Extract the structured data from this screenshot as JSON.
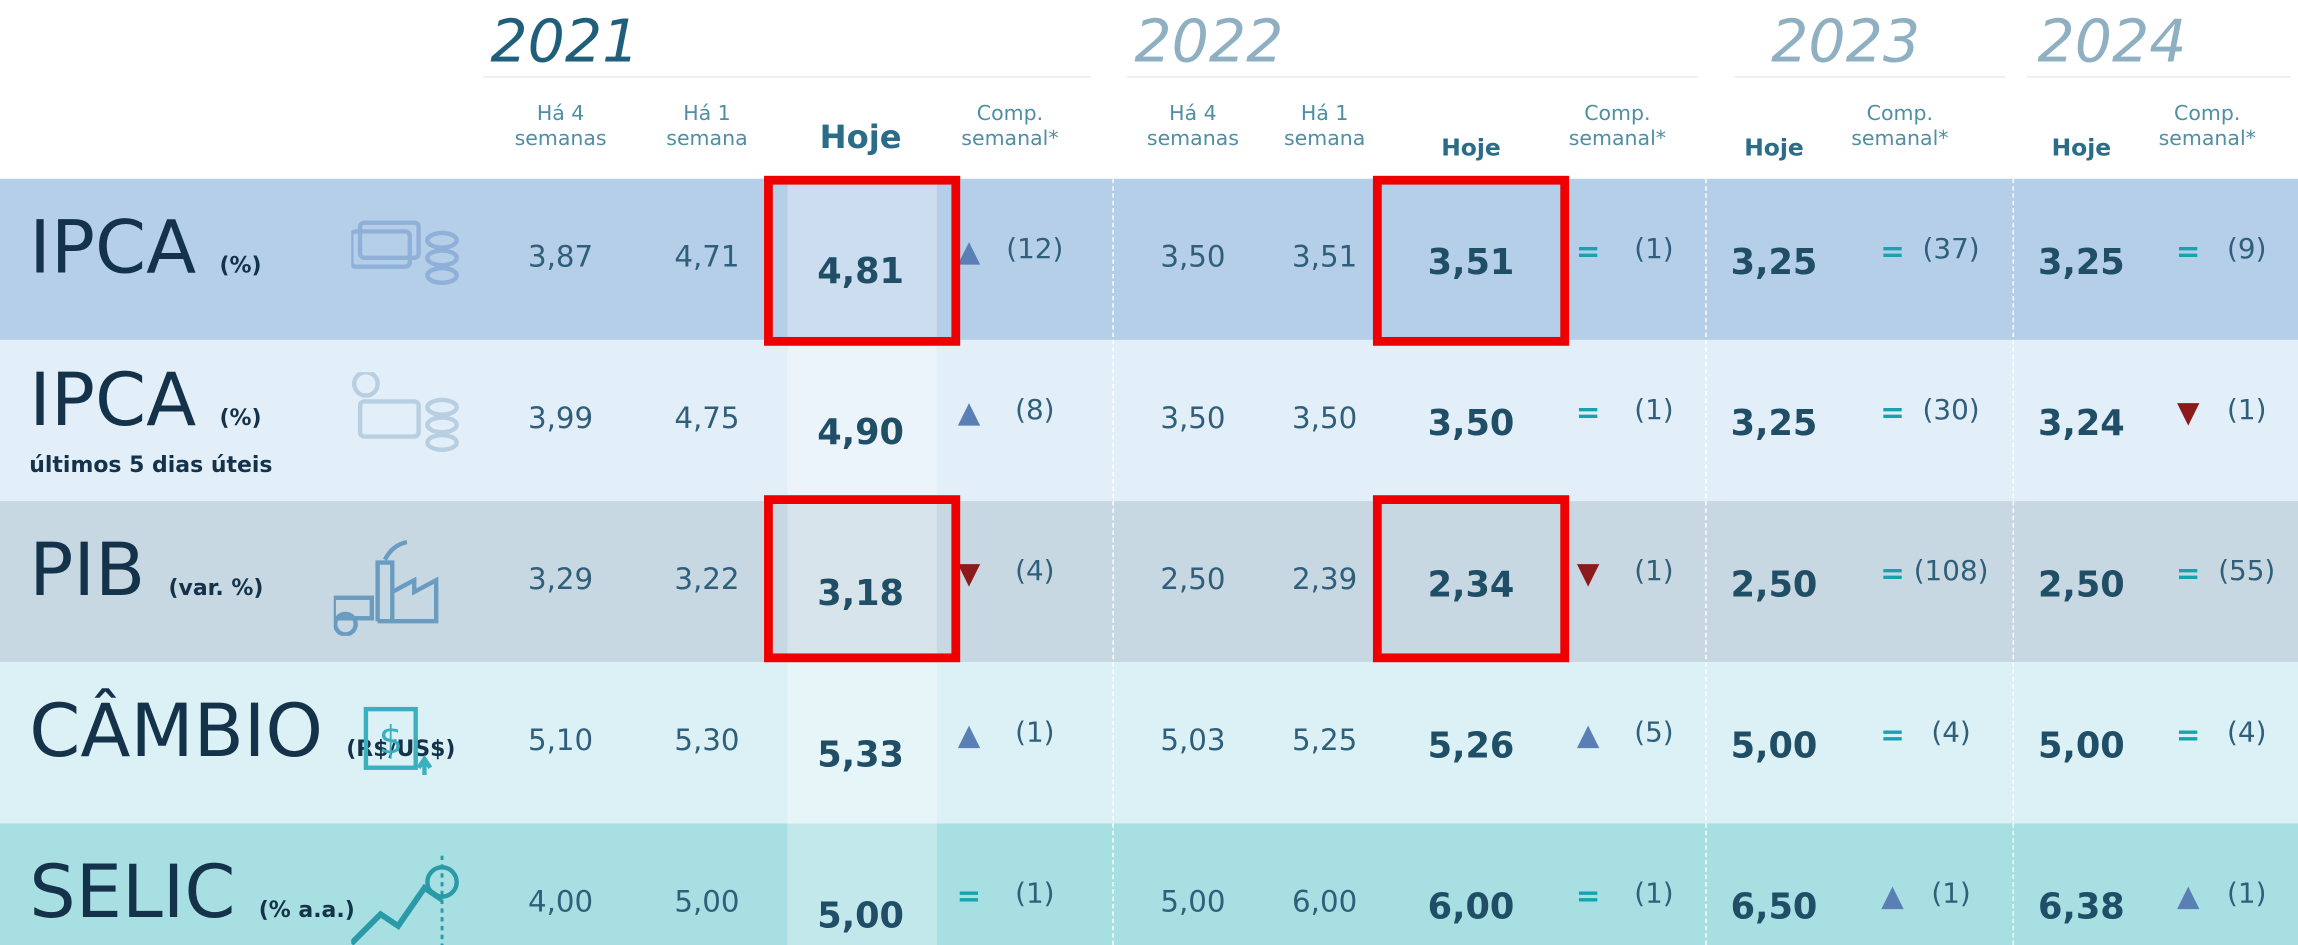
{
  "header": {
    "periods": [
      {
        "year": "2021",
        "columns": [
          "Há 4 semanas",
          "Há 1 semana",
          "Hoje",
          "Comp. semanal*"
        ]
      },
      {
        "year": "2022",
        "columns": [
          "Há 4 semanas",
          "Há 1 semana",
          "Hoje",
          "Comp. semanal*"
        ]
      },
      {
        "year": "2023",
        "columns": [
          "Hoje",
          "Comp. semanal*"
        ]
      },
      {
        "year": "2024",
        "columns": [
          "Hoje",
          "Comp. semanal*"
        ]
      }
    ]
  },
  "rows": [
    {
      "name": "IPCA",
      "unit": "(%)",
      "background": "#b5cfe9",
      "periods": [
        {
          "values": [
            "3,87",
            "4,71",
            "4,81"
          ],
          "trend": "▲",
          "trend_color": "#5a7fb5",
          "count": "(12)"
        },
        {
          "values": [
            "3,50",
            "3,51",
            "3,51"
          ],
          "trend": "=",
          "trend_color": "#17a2b0",
          "count": "(1)"
        },
        {
          "values": [
            "3,25"
          ],
          "trend": "=",
          "trend_color": "#17a2b0",
          "count": "(37)"
        },
        {
          "values": [
            "3,25"
          ],
          "trend": "=",
          "trend_color": "#17a2b0",
          "count": "(9)"
        }
      ]
    },
    {
      "name": "IPCA",
      "unit": "(%)",
      "note": "últimos 5 dias úteis",
      "background": "#e3eff8",
      "periods": [
        {
          "values": [
            "3,99",
            "4,75",
            "4,90"
          ],
          "trend": "▲",
          "trend_color": "#5a7fb5",
          "count": "(8)"
        },
        {
          "values": [
            "3,50",
            "3,50",
            "3,50"
          ],
          "trend": "=",
          "trend_color": "#17a2b0",
          "count": "(1)"
        },
        {
          "values": [
            "3,25"
          ],
          "trend": "=",
          "trend_color": "#17a2b0",
          "count": "(30)"
        },
        {
          "values": [
            "3,24"
          ],
          "trend": "▼",
          "trend_color": "#8b1a1a",
          "count": "(1)"
        }
      ]
    },
    {
      "name": "PIB",
      "unit": "(var. %)",
      "background": "#c8d8e3",
      "periods": [
        {
          "values": [
            "3,29",
            "3,22",
            "3,18"
          ],
          "trend": "▼",
          "trend_color": "#8b1a1a",
          "count": "(4)"
        },
        {
          "values": [
            "2,50",
            "2,39",
            "2,34"
          ],
          "trend": "▼",
          "trend_color": "#8b1a1a",
          "count": "(1)"
        },
        {
          "values": [
            "2,50"
          ],
          "trend": "=",
          "trend_color": "#17a2b0",
          "count": "(108)"
        },
        {
          "values": [
            "2,50"
          ],
          "trend": "=",
          "trend_color": "#17a2b0",
          "count": "(55)"
        }
      ]
    },
    {
      "name": "CÂMBIO",
      "unit": "(R$/US$)",
      "background": "#dcf1f5",
      "periods": [
        {
          "values": [
            "5,10",
            "5,30",
            "5,33"
          ],
          "trend": "▲",
          "trend_color": "#5a7fb5",
          "count": "(1)"
        },
        {
          "values": [
            "5,03",
            "5,25",
            "5,26"
          ],
          "trend": "▲",
          "trend_color": "#5a7fb5",
          "count": "(5)"
        },
        {
          "values": [
            "5,00"
          ],
          "trend": "=",
          "trend_color": "#17a2b0",
          "count": "(4)"
        },
        {
          "values": [
            "5,00"
          ],
          "trend": "=",
          "trend_color": "#17a2b0",
          "count": "(4)"
        }
      ]
    },
    {
      "name": "SELIC",
      "unit": "(% a.a.)",
      "background": "#a8dfe2",
      "periods": [
        {
          "values": [
            "4,00",
            "5,00",
            "5,00"
          ],
          "trend": "=",
          "trend_color": "#17a2b0",
          "count": "(1)"
        },
        {
          "values": [
            "5,00",
            "6,00",
            "6,00"
          ],
          "trend": "=",
          "trend_color": "#17a2b0",
          "count": "(1)"
        },
        {
          "values": [
            "6,50"
          ],
          "trend": "▲",
          "trend_color": "#5a7fb5",
          "count": "(1)"
        },
        {
          "values": [
            "6,38"
          ],
          "trend": "▲",
          "trend_color": "#5a7fb5",
          "count": "(1)"
        }
      ]
    }
  ]
}
